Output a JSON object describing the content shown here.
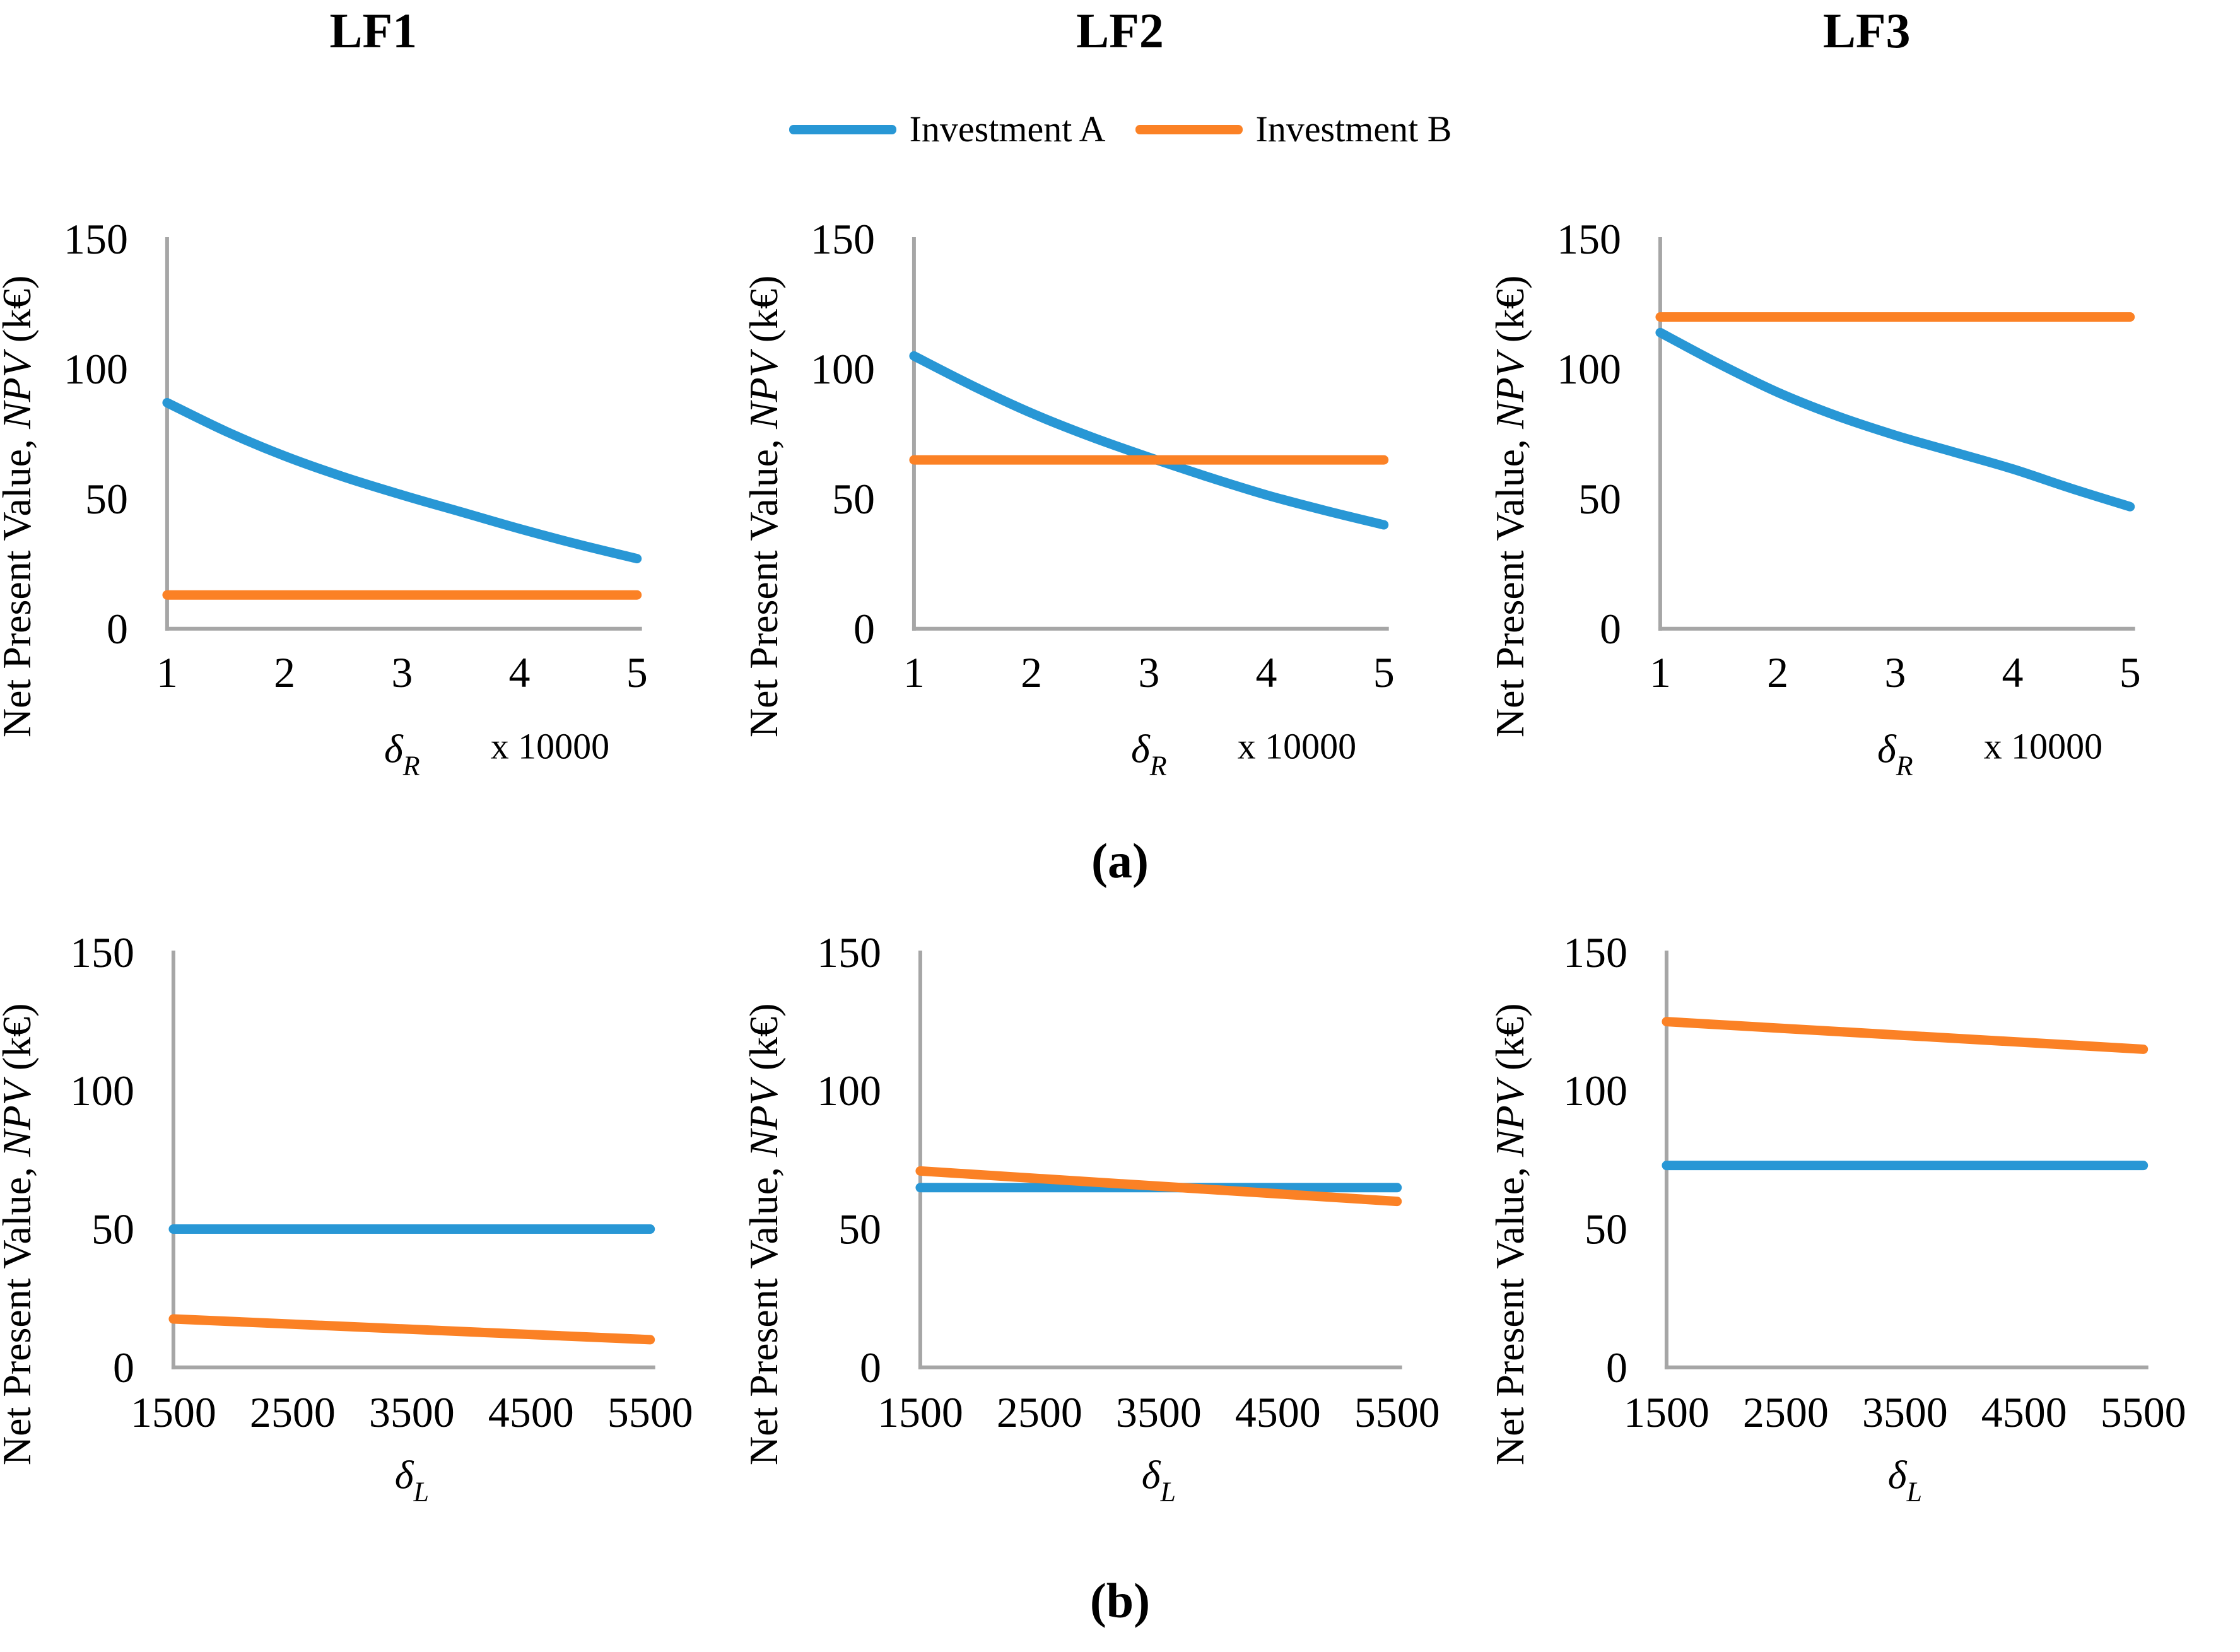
{
  "figure": {
    "background": "#FFFFFF"
  },
  "column_titles": [
    "LF1",
    "LF2",
    "LF3"
  ],
  "legend": {
    "items": [
      {
        "label": "Investment A",
        "color": "#2897D5"
      },
      {
        "label": "Investment B",
        "color": "#FB8125"
      }
    ]
  },
  "captions": {
    "a": "(a)",
    "b": "(b)"
  },
  "axis_style": {
    "line_color": "#A6A6A6",
    "text_color": "#000000"
  },
  "chart_data": [
    {
      "id": "lf1-a",
      "panel": "a",
      "column": "LF1",
      "type": "line",
      "ylabel_parts": [
        {
          "text": "Net Present Value, ",
          "italic": false
        },
        {
          "text": "NPV",
          "italic": true
        },
        {
          "text": " (k€)",
          "italic": false
        }
      ],
      "xlabel": {
        "symbol": "δ",
        "subscript": "R"
      },
      "x_multiplier": "x 10000",
      "xlim": [
        1,
        5
      ],
      "ylim": [
        0,
        150
      ],
      "xticks": [
        1,
        2,
        3,
        4,
        5
      ],
      "yticks": [
        0,
        50,
        100,
        150
      ],
      "grid": false,
      "legend_position": "top-center",
      "series": [
        {
          "name": "Investment A",
          "color": "#2897D5",
          "x": [
            1,
            1.5,
            2,
            2.5,
            3,
            3.5,
            4,
            4.5,
            5
          ],
          "y": [
            87,
            76,
            66.5,
            58.5,
            51.5,
            45,
            38.5,
            32.5,
            27
          ]
        },
        {
          "name": "Investment B",
          "color": "#FB8125",
          "x": [
            1,
            5
          ],
          "y": [
            13,
            13
          ]
        }
      ]
    },
    {
      "id": "lf2-a",
      "panel": "a",
      "column": "LF2",
      "type": "line",
      "ylabel_parts": [
        {
          "text": "Net Present Value, ",
          "italic": false
        },
        {
          "text": "NPV",
          "italic": true
        },
        {
          "text": " (k€)",
          "italic": false
        }
      ],
      "xlabel": {
        "symbol": "δ",
        "subscript": "R"
      },
      "x_multiplier": "x 10000",
      "xlim": [
        1,
        5
      ],
      "ylim": [
        0,
        150
      ],
      "xticks": [
        1,
        2,
        3,
        4,
        5
      ],
      "yticks": [
        0,
        50,
        100,
        150
      ],
      "grid": false,
      "series": [
        {
          "name": "Investment A",
          "color": "#2897D5",
          "x": [
            1,
            1.5,
            2,
            2.5,
            3,
            3.5,
            4,
            4.5,
            5
          ],
          "y": [
            105,
            93.5,
            83,
            74,
            66,
            58.5,
            51.5,
            45.5,
            40
          ]
        },
        {
          "name": "Investment B",
          "color": "#FB8125",
          "x": [
            1,
            5
          ],
          "y": [
            65,
            65
          ]
        }
      ]
    },
    {
      "id": "lf3-a",
      "panel": "a",
      "column": "LF3",
      "type": "line",
      "ylabel_parts": [
        {
          "text": "Net Present Value, ",
          "italic": false
        },
        {
          "text": "NPV",
          "italic": true
        },
        {
          "text": " (k€)",
          "italic": false
        }
      ],
      "xlabel": {
        "symbol": "δ",
        "subscript": "R"
      },
      "x_multiplier": "x 10000",
      "xlim": [
        1,
        5
      ],
      "ylim": [
        0,
        150
      ],
      "xticks": [
        1,
        2,
        3,
        4,
        5
      ],
      "yticks": [
        0,
        50,
        100,
        150
      ],
      "grid": false,
      "series": [
        {
          "name": "Investment A",
          "color": "#2897D5",
          "x": [
            1,
            1.5,
            2,
            2.5,
            3,
            3.5,
            4,
            4.5,
            5
          ],
          "y": [
            114,
            102,
            91,
            82,
            74.5,
            68,
            61.5,
            54,
            47
          ]
        },
        {
          "name": "Investment B",
          "color": "#FB8125",
          "x": [
            1,
            5
          ],
          "y": [
            120,
            120
          ]
        }
      ]
    },
    {
      "id": "lf1-b",
      "panel": "b",
      "column": "LF1",
      "type": "line",
      "ylabel_parts": [
        {
          "text": "Net Present Value, ",
          "italic": false
        },
        {
          "text": "NPV",
          "italic": true
        },
        {
          "text": " (k€)",
          "italic": false
        }
      ],
      "xlabel": {
        "symbol": "δ",
        "subscript": "L"
      },
      "xlim": [
        1500,
        5500
      ],
      "ylim": [
        0,
        150
      ],
      "xticks": [
        1500,
        2500,
        3500,
        4500,
        5500
      ],
      "yticks": [
        0,
        50,
        100,
        150
      ],
      "grid": false,
      "series": [
        {
          "name": "Investment A",
          "color": "#2897D5",
          "x": [
            1500,
            5500
          ],
          "y": [
            50,
            50
          ]
        },
        {
          "name": "Investment B",
          "color": "#FB8125",
          "x": [
            1500,
            5500
          ],
          "y": [
            17.5,
            10
          ]
        }
      ]
    },
    {
      "id": "lf2-b",
      "panel": "b",
      "column": "LF2",
      "type": "line",
      "ylabel_parts": [
        {
          "text": "Net Present Value, ",
          "italic": false
        },
        {
          "text": "NPV",
          "italic": true
        },
        {
          "text": " (k€)",
          "italic": false
        }
      ],
      "xlabel": {
        "symbol": "δ",
        "subscript": "L"
      },
      "xlim": [
        1500,
        5500
      ],
      "ylim": [
        0,
        150
      ],
      "xticks": [
        1500,
        2500,
        3500,
        4500,
        5500
      ],
      "yticks": [
        0,
        50,
        100,
        150
      ],
      "grid": false,
      "series": [
        {
          "name": "Investment A",
          "color": "#2897D5",
          "x": [
            1500,
            5500
          ],
          "y": [
            65,
            65
          ]
        },
        {
          "name": "Investment B",
          "color": "#FB8125",
          "x": [
            1500,
            5500
          ],
          "y": [
            71,
            60
          ]
        }
      ]
    },
    {
      "id": "lf3-b",
      "panel": "b",
      "column": "LF3",
      "type": "line",
      "ylabel_parts": [
        {
          "text": "Net Present Value, ",
          "italic": false
        },
        {
          "text": "NPV",
          "italic": true
        },
        {
          "text": " (k€)",
          "italic": false
        }
      ],
      "xlabel": {
        "symbol": "δ",
        "subscript": "L"
      },
      "xlim": [
        1500,
        5500
      ],
      "ylim": [
        0,
        150
      ],
      "xticks": [
        1500,
        2500,
        3500,
        4500,
        5500
      ],
      "yticks": [
        0,
        50,
        100,
        150
      ],
      "grid": false,
      "series": [
        {
          "name": "Investment A",
          "color": "#2897D5",
          "x": [
            1500,
            5500
          ],
          "y": [
            73,
            73
          ]
        },
        {
          "name": "Investment B",
          "color": "#FB8125",
          "x": [
            1500,
            5500
          ],
          "y": [
            125,
            115
          ]
        }
      ]
    }
  ]
}
